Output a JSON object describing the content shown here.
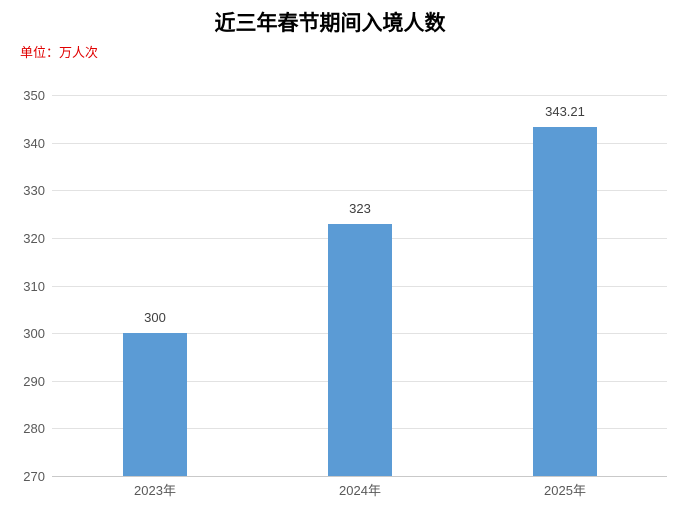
{
  "title": "近三年春节期间入境人数",
  "unit_label": "单位：万人次",
  "colors": {
    "bar": "#5b9bd5",
    "unit_text": "#e00000",
    "grid": "#e2e2e2",
    "axis_line": "#c9c9c9",
    "tick_text": "#595959",
    "value_text": "#404040",
    "title_text": "#000000"
  },
  "chart_data": {
    "type": "bar",
    "title": "近三年春节期间入境人数",
    "subtitle": "单位：万人次",
    "categories": [
      "2023年",
      "2024年",
      "2025年"
    ],
    "values": [
      300,
      323,
      343.21
    ],
    "value_labels": [
      "300",
      "323",
      "343.21"
    ],
    "xlabel": "",
    "ylabel": "单位：万人次",
    "ylim": [
      270,
      350
    ],
    "yticks": [
      270,
      280,
      290,
      300,
      310,
      320,
      330,
      340,
      350
    ],
    "grid": true,
    "legend": false,
    "bar_color": "#5b9bd5"
  }
}
